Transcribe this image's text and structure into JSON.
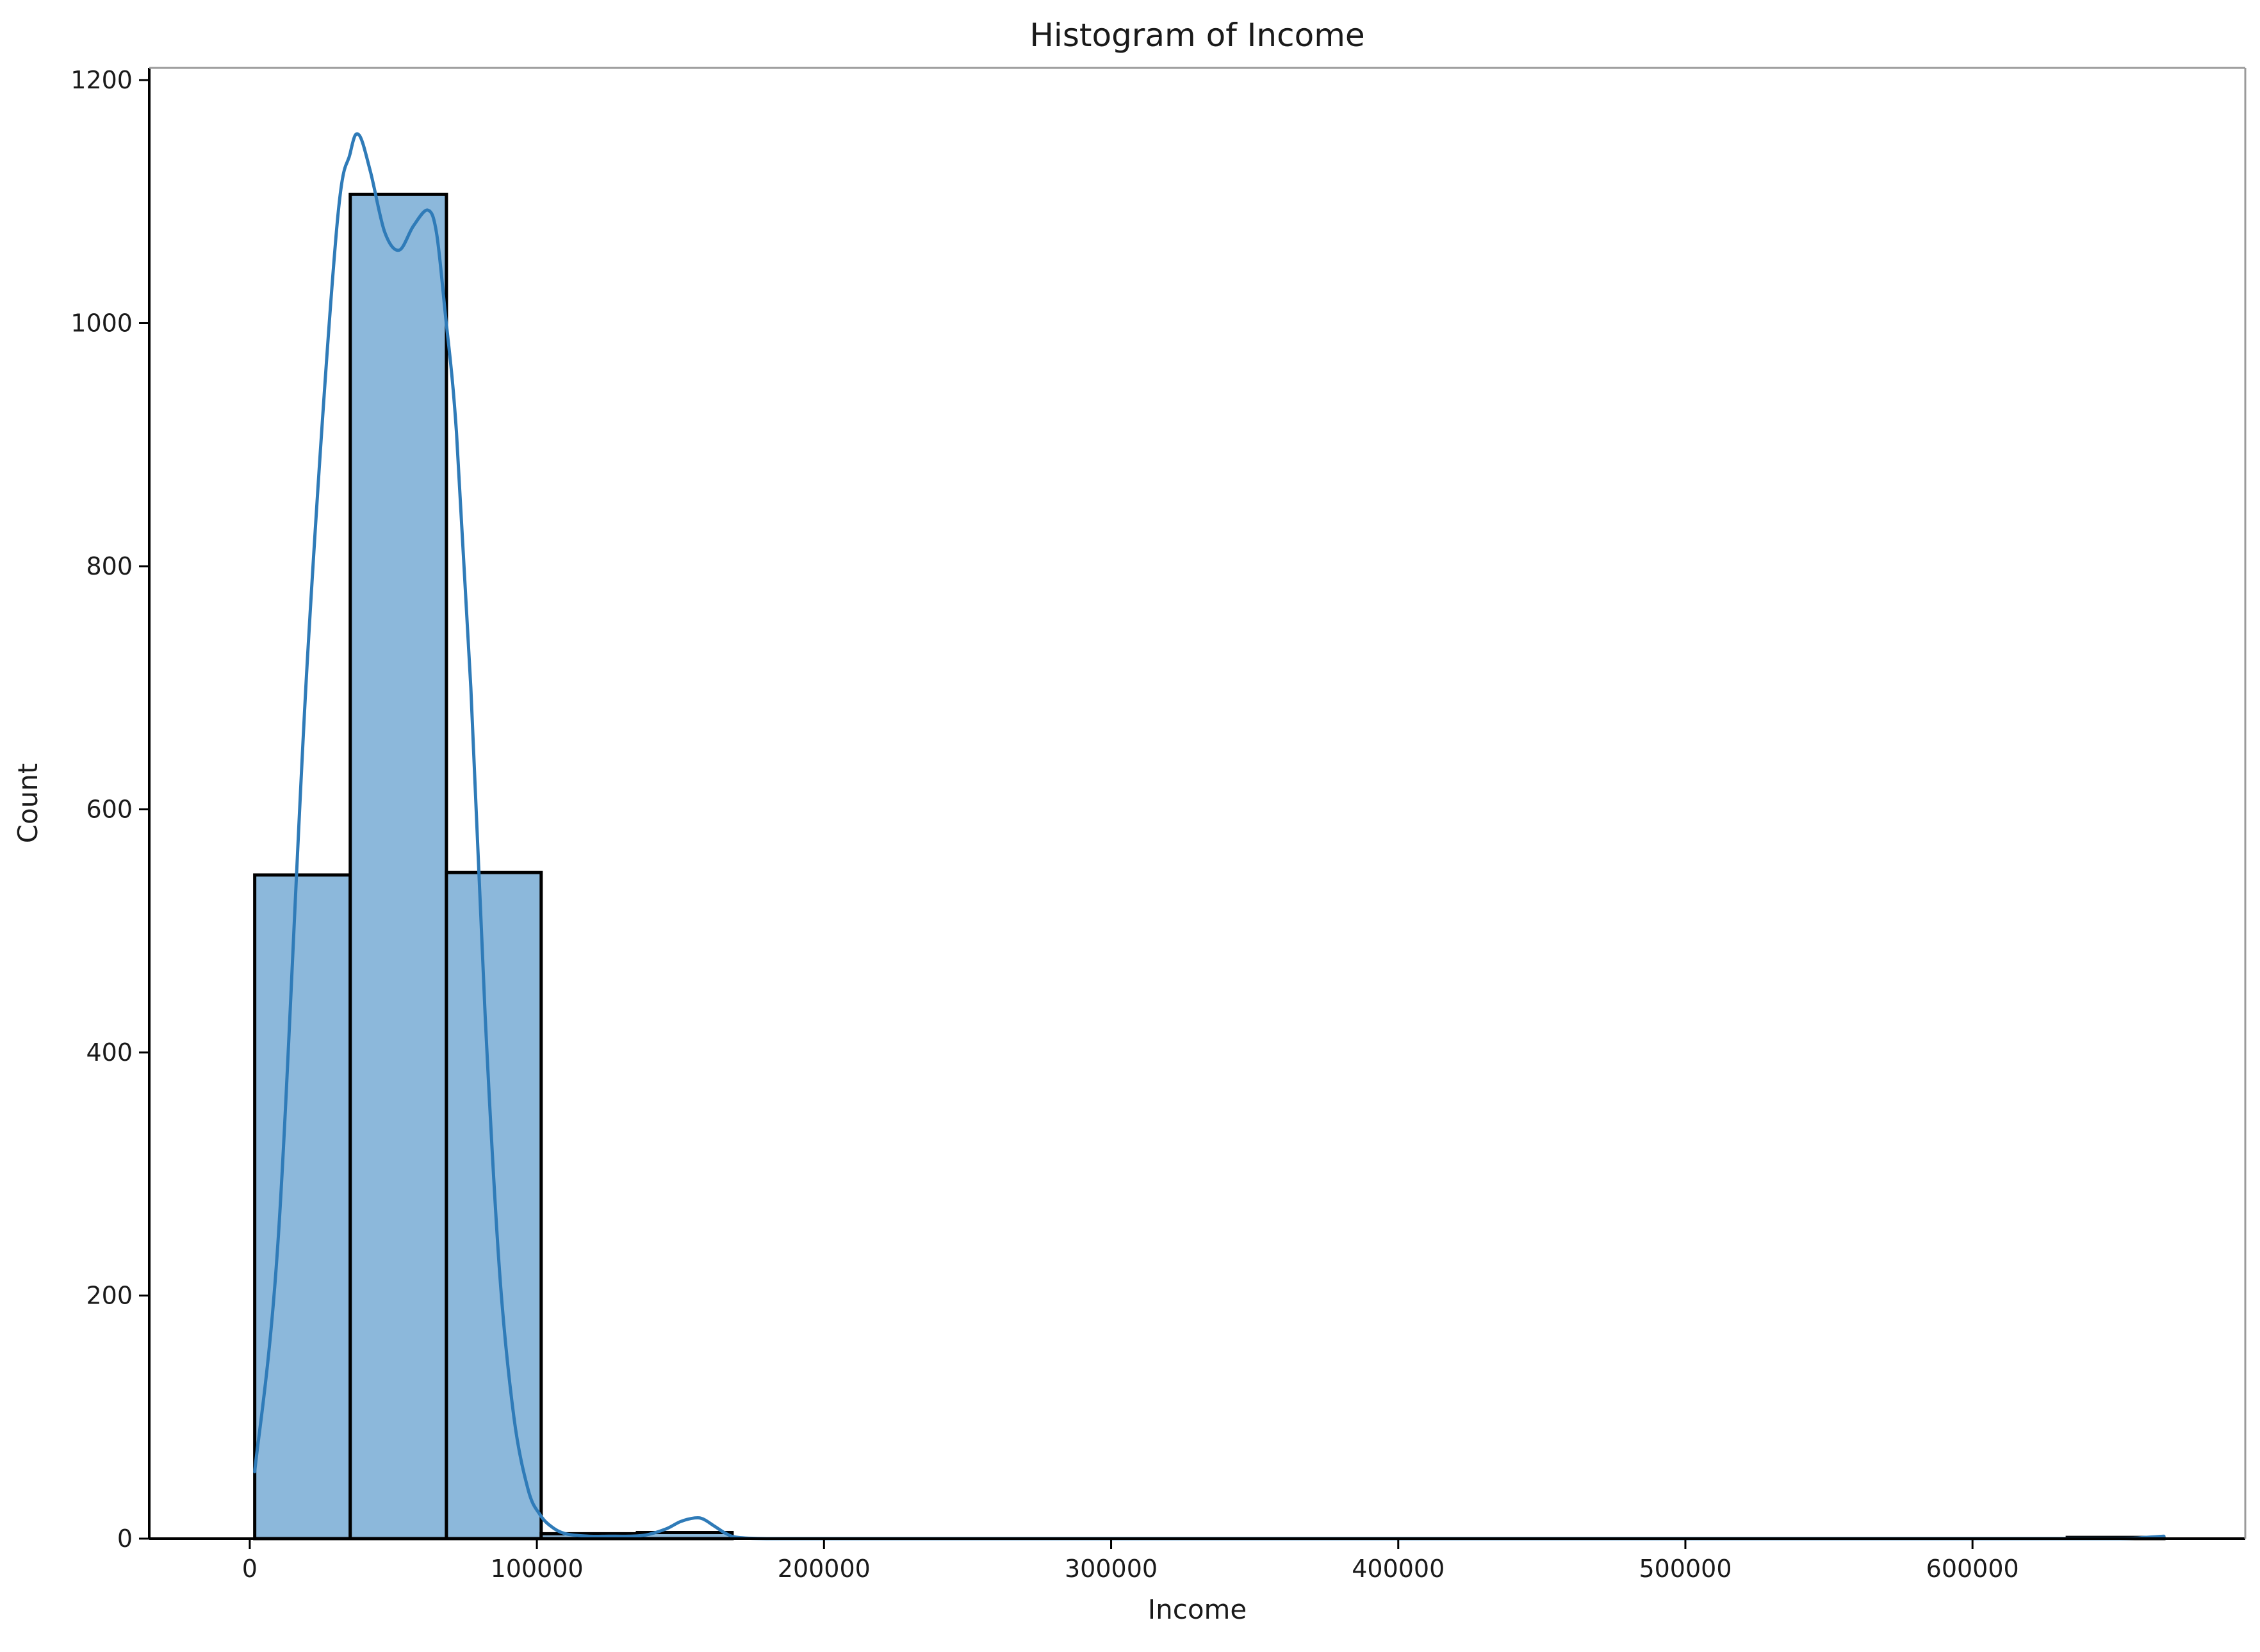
{
  "chart_data": {
    "type": "bar",
    "subtype": "histogram",
    "title": "Histogram of Income",
    "xlabel": "Income",
    "ylabel": "Count",
    "xlim": [
      -35000,
      695000
    ],
    "ylim": [
      0,
      1210
    ],
    "xticks": [
      0,
      100000,
      200000,
      300000,
      400000,
      500000,
      600000
    ],
    "xtick_labels": [
      "0",
      "100000",
      "200000",
      "300000",
      "400000",
      "500000",
      "600000"
    ],
    "yticks": [
      0,
      200,
      400,
      600,
      800,
      1000,
      1200
    ],
    "ytick_labels": [
      "0",
      "200",
      "400",
      "600",
      "800",
      "1000",
      "1200"
    ],
    "bins": [
      {
        "x0": 1730,
        "x1": 35000,
        "count": 546
      },
      {
        "x0": 35000,
        "x1": 68500,
        "count": 1106
      },
      {
        "x0": 68500,
        "x1": 101500,
        "count": 548
      },
      {
        "x0": 101500,
        "x1": 135000,
        "count": 4
      },
      {
        "x0": 135000,
        "x1": 168000,
        "count": 5
      },
      {
        "x0": 168000,
        "x1": 201000,
        "count": 0
      },
      {
        "x0": 201000,
        "x1": 234000,
        "count": 0
      },
      {
        "x0": 234000,
        "x1": 267500,
        "count": 0
      },
      {
        "x0": 267500,
        "x1": 300500,
        "count": 0
      },
      {
        "x0": 300500,
        "x1": 334000,
        "count": 0
      },
      {
        "x0": 334000,
        "x1": 367000,
        "count": 0
      },
      {
        "x0": 367000,
        "x1": 400500,
        "count": 0
      },
      {
        "x0": 400500,
        "x1": 433500,
        "count": 0
      },
      {
        "x0": 433500,
        "x1": 466500,
        "count": 0
      },
      {
        "x0": 466500,
        "x1": 500000,
        "count": 0
      },
      {
        "x0": 500000,
        "x1": 533000,
        "count": 0
      },
      {
        "x0": 533000,
        "x1": 566500,
        "count": 0
      },
      {
        "x0": 566500,
        "x1": 599500,
        "count": 0
      },
      {
        "x0": 599500,
        "x1": 633000,
        "count": 0
      },
      {
        "x0": 633000,
        "x1": 666666,
        "count": 1
      }
    ],
    "kde": {
      "x": [
        1730,
        10000,
        20000,
        30000,
        35000,
        38000,
        42000,
        47000,
        52000,
        57000,
        62000,
        65000,
        68000,
        72000,
        77000,
        82000,
        87000,
        92000,
        97000,
        101000,
        105000,
        110000,
        118000,
        125000,
        132000,
        138000,
        145000,
        150000,
        155000,
        158000,
        162000,
        166000,
        170000,
        180000,
        200000,
        300000,
        400000,
        500000,
        600000,
        650000,
        660000,
        666666
      ],
      "y": [
        55,
        250,
        720,
        1070,
        1140,
        1155,
        1125,
        1075,
        1060,
        1080,
        1093,
        1075,
        1010,
        910,
        700,
        430,
        220,
        100,
        40,
        20,
        10,
        4,
        2,
        2,
        2,
        3,
        8,
        14,
        17,
        16,
        10,
        4,
        1,
        0,
        0,
        0,
        0,
        0,
        0,
        0,
        1,
        2
      ]
    },
    "colors": {
      "bar_fill": "#8cb8db",
      "bar_edge": "#000000",
      "kde_line": "#2f7bb8"
    },
    "grid": false,
    "legend": "none"
  }
}
